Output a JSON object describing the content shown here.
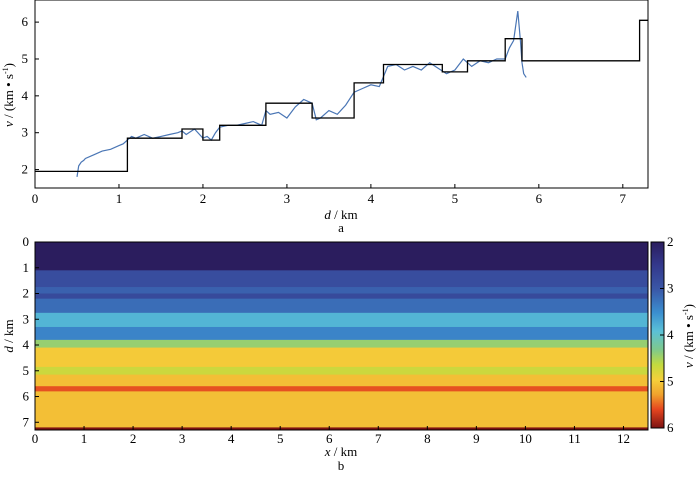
{
  "chart_data": [
    {
      "panel_label": "a",
      "type": "line",
      "xlabel_italic": "d",
      "xlabel_rest": " / km",
      "ylabel_italic": "v",
      "ylabel_rest": " / (km • s",
      "ylabel_sup": "-1",
      "ylabel_close": ")",
      "xlim": [
        0,
        7.3
      ],
      "ylim": [
        1.5,
        6.6
      ],
      "xticks": [
        0,
        1,
        2,
        3,
        4,
        5,
        6,
        7
      ],
      "yticks": [
        2,
        3,
        4,
        5,
        6
      ],
      "grid": false,
      "series": [
        {
          "role": "measured log",
          "color": "#4a76b5",
          "x": [
            0.5,
            0.52,
            0.55,
            0.58,
            0.6,
            0.7,
            0.8,
            0.9,
            1.0,
            1.05,
            1.1,
            1.15,
            1.2,
            1.3,
            1.4,
            1.5,
            1.6,
            1.7,
            1.75,
            1.8,
            1.9,
            2.0,
            2.05,
            2.1,
            2.15,
            2.2,
            2.3,
            2.4,
            2.5,
            2.6,
            2.7,
            2.75,
            2.8,
            2.9,
            3.0,
            3.1,
            3.2,
            3.3,
            3.35,
            3.4,
            3.5,
            3.6,
            3.7,
            3.8,
            3.9,
            4.0,
            4.1,
            4.2,
            4.3,
            4.4,
            4.5,
            4.6,
            4.7,
            4.8,
            4.9,
            5.0,
            5.1,
            5.2,
            5.3,
            5.4,
            5.5,
            5.6,
            5.65,
            5.7,
            5.75,
            5.78,
            5.8,
            5.82,
            5.85
          ],
          "y": [
            1.8,
            2.1,
            2.2,
            2.25,
            2.3,
            2.4,
            2.5,
            2.55,
            2.65,
            2.7,
            2.8,
            2.9,
            2.85,
            2.95,
            2.85,
            2.9,
            2.95,
            3.0,
            3.05,
            2.95,
            3.1,
            2.85,
            2.9,
            2.8,
            3.0,
            3.15,
            3.2,
            3.2,
            3.25,
            3.3,
            3.2,
            3.6,
            3.5,
            3.55,
            3.4,
            3.7,
            3.9,
            3.8,
            3.35,
            3.4,
            3.6,
            3.5,
            3.75,
            4.1,
            4.2,
            4.3,
            4.25,
            4.8,
            4.85,
            4.7,
            4.8,
            4.7,
            4.9,
            4.75,
            4.6,
            4.7,
            5.0,
            4.8,
            4.95,
            4.9,
            5.0,
            5.0,
            5.3,
            5.5,
            6.3,
            5.5,
            4.9,
            4.6,
            4.5
          ]
        },
        {
          "role": "blocked model",
          "color": "#000000",
          "x": [
            0,
            1.1,
            1.1,
            1.75,
            1.75,
            2.0,
            2.0,
            2.2,
            2.2,
            2.75,
            2.75,
            3.3,
            3.3,
            3.8,
            3.8,
            4.15,
            4.15,
            4.85,
            4.85,
            5.15,
            5.15,
            5.6,
            5.6,
            5.8,
            5.8,
            7.2,
            7.2,
            7.3
          ],
          "y": [
            1.95,
            1.95,
            2.85,
            2.85,
            3.1,
            3.1,
            2.8,
            2.8,
            3.2,
            3.2,
            3.8,
            3.8,
            3.4,
            3.4,
            4.35,
            4.35,
            4.85,
            4.85,
            4.65,
            4.65,
            4.95,
            4.95,
            5.55,
            5.55,
            4.95,
            4.95,
            6.05,
            6.05
          ]
        }
      ]
    },
    {
      "panel_label": "b",
      "type": "heatmap",
      "xlabel_italic": "x",
      "xlabel_rest": " / km",
      "ylabel_italic": "d",
      "ylabel_rest": " / km",
      "xlim": [
        0,
        12.5
      ],
      "ylim": [
        0,
        7.3
      ],
      "xticks": [
        0,
        1,
        2,
        3,
        4,
        5,
        6,
        7,
        8,
        9,
        10,
        11,
        12
      ],
      "yticks": [
        0,
        1,
        2,
        3,
        4,
        5,
        6,
        7
      ],
      "colorbar": {
        "ticks": [
          2,
          3,
          4,
          5,
          6
        ],
        "range": [
          2,
          6
        ],
        "label_italic": "v",
        "label_rest": " / (km • s",
        "label_sup": "-1",
        "label_close": ")"
      },
      "layers": [
        {
          "top": 0,
          "bottom": 1.1,
          "v": 2.0
        },
        {
          "top": 1.1,
          "bottom": 1.75,
          "v": 2.85
        },
        {
          "top": 1.75,
          "bottom": 2.0,
          "v": 3.1
        },
        {
          "top": 2.0,
          "bottom": 2.2,
          "v": 2.8
        },
        {
          "top": 2.2,
          "bottom": 2.75,
          "v": 3.2
        },
        {
          "top": 2.75,
          "bottom": 3.3,
          "v": 3.8
        },
        {
          "top": 3.3,
          "bottom": 3.8,
          "v": 3.4
        },
        {
          "top": 3.8,
          "bottom": 4.1,
          "v": 4.3
        },
        {
          "top": 4.1,
          "bottom": 4.85,
          "v": 4.85
        },
        {
          "top": 4.85,
          "bottom": 5.15,
          "v": 4.55
        },
        {
          "top": 5.15,
          "bottom": 5.6,
          "v": 4.95
        },
        {
          "top": 5.6,
          "bottom": 5.8,
          "v": 5.55
        },
        {
          "top": 5.8,
          "bottom": 7.2,
          "v": 4.95
        },
        {
          "top": 7.2,
          "bottom": 7.3,
          "v": 6.05
        }
      ]
    }
  ]
}
